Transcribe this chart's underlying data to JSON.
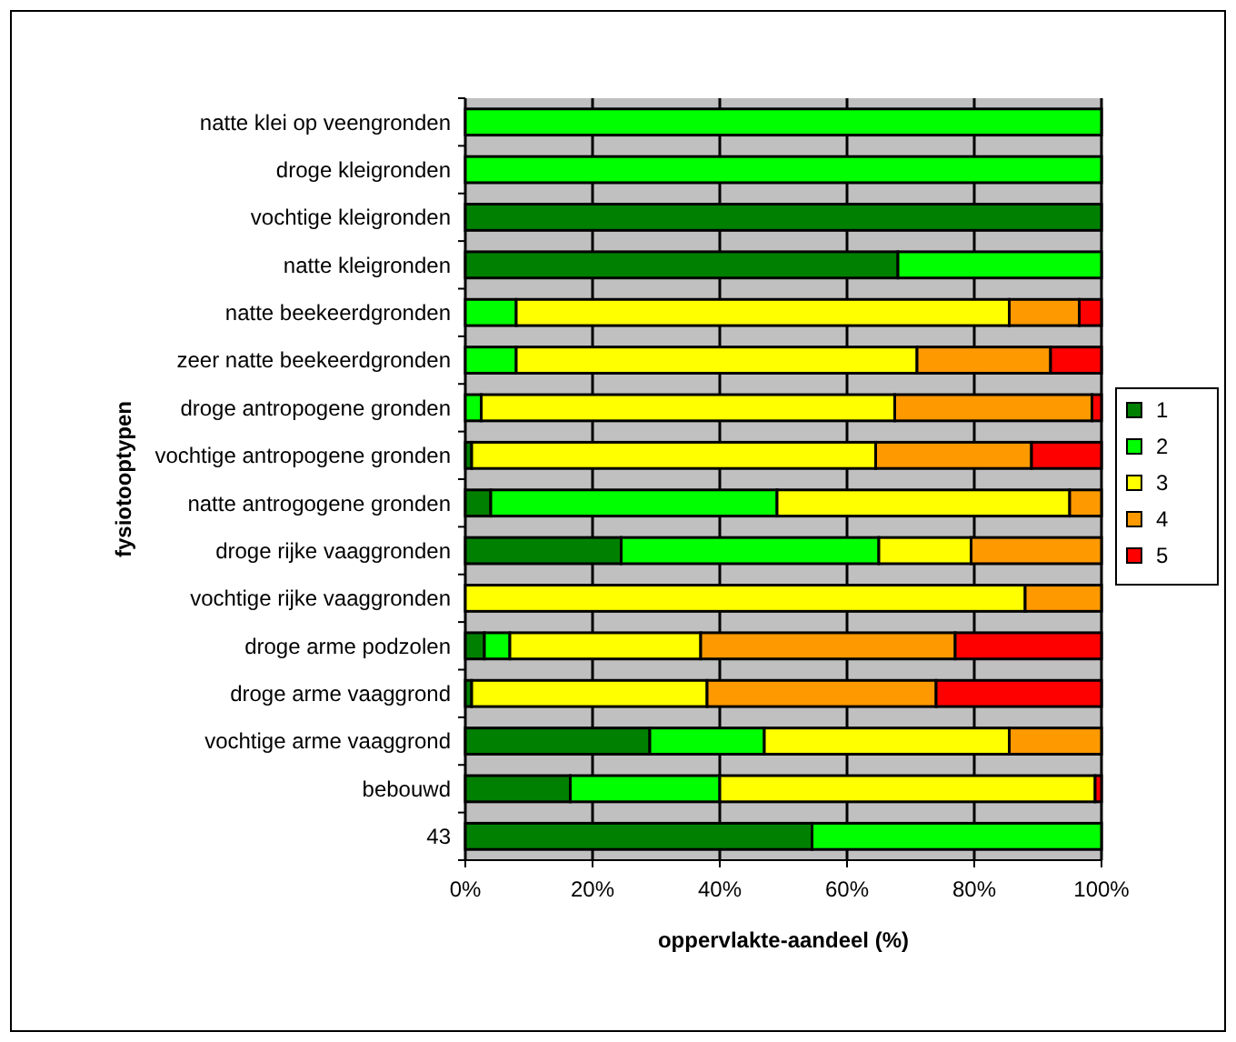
{
  "chart_data": {
    "type": "bar",
    "orientation": "horizontal",
    "stacked": true,
    "xlabel": "oppervlakte-aandeel (%)",
    "ylabel": "fysiotooptypen",
    "categories": [
      "natte klei op veengronden",
      "droge kleigronden",
      "vochtige kleigronden",
      "natte kleigronden",
      "natte beekeerdgronden",
      "zeer natte beekeerdgronden",
      "droge antropogene gronden",
      "vochtige antropogene gronden",
      "natte antrogogene gronden",
      "droge rijke vaaggronden",
      "vochtige rijke vaaggronden",
      "droge arme podzolen",
      "droge arme vaaggrond",
      "vochtige arme vaaggrond",
      "bebouwd",
      "43"
    ],
    "series": [
      {
        "name": "1",
        "color": "#008000",
        "values": [
          0,
          0,
          100,
          68,
          0,
          0,
          0,
          1,
          4,
          24.5,
          0,
          3,
          1,
          29,
          16.5,
          54.5
        ]
      },
      {
        "name": "2",
        "color": "#00ff00",
        "values": [
          100,
          100,
          0,
          32,
          8,
          8,
          2.5,
          0,
          45,
          40.5,
          0,
          4,
          0,
          18,
          23.5,
          45.5
        ]
      },
      {
        "name": "3",
        "color": "#ffff00",
        "values": [
          0,
          0,
          0,
          0,
          77.5,
          63,
          65,
          63.5,
          46,
          14.5,
          88,
          30,
          37,
          38.5,
          59,
          0
        ]
      },
      {
        "name": "4",
        "color": "#ff9900",
        "values": [
          0,
          0,
          0,
          0,
          11,
          21,
          31,
          24.5,
          5,
          20.5,
          12,
          40,
          36,
          14.5,
          0,
          0
        ]
      },
      {
        "name": "5",
        "color": "#ff0000",
        "values": [
          0,
          0,
          0,
          0,
          3.5,
          8,
          1.5,
          11,
          0,
          0,
          0,
          23,
          26,
          0,
          1,
          0
        ]
      }
    ],
    "xlim": [
      0,
      100
    ],
    "xticks": [
      {
        "value": 0,
        "label": "0%"
      },
      {
        "value": 20,
        "label": "20%"
      },
      {
        "value": 40,
        "label": "40%"
      },
      {
        "value": 60,
        "label": "60%"
      },
      {
        "value": 80,
        "label": "80%"
      },
      {
        "value": 100,
        "label": "100%"
      }
    ],
    "grid": "x",
    "legend": "right"
  }
}
